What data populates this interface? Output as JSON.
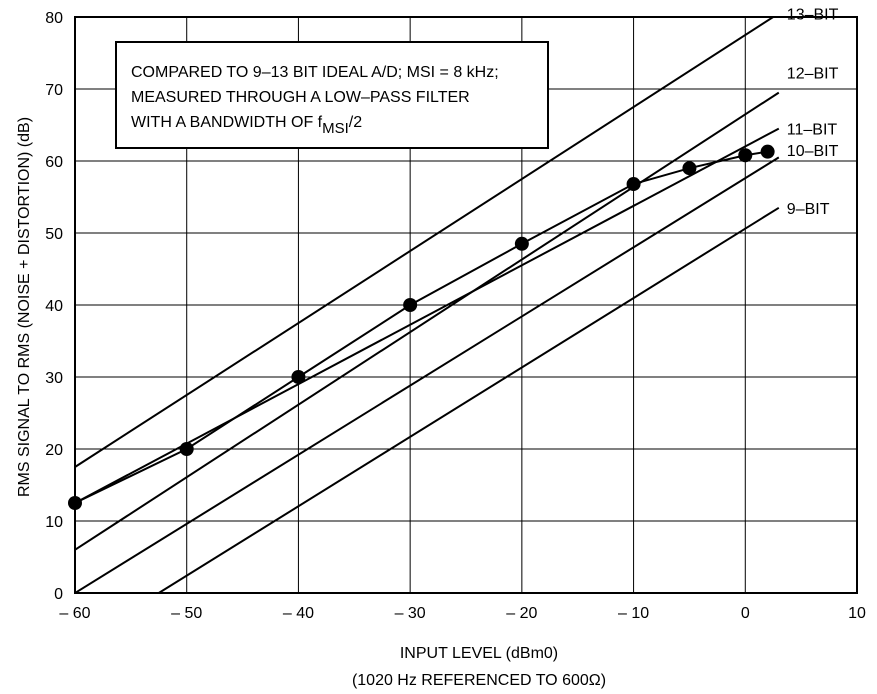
{
  "chart_data": {
    "type": "line",
    "xlabel": "INPUT LEVEL (dBm0)",
    "xlabel_sub": "(1020 Hz REFERENCED TO 600Ω)",
    "ylabel": "RMS SIGNAL TO RMS (NOISE + DISTORTION) (dB)",
    "xlim": [
      -60,
      10
    ],
    "ylim": [
      0,
      80
    ],
    "x_ticks": [
      -60,
      -50,
      -40,
      -30,
      -20,
      -10,
      0,
      10
    ],
    "x_tick_labels": [
      "– 60",
      "– 50",
      "– 40",
      "– 30",
      "– 20",
      "– 10",
      "0",
      "10"
    ],
    "y_ticks": [
      0,
      10,
      20,
      30,
      40,
      50,
      60,
      70,
      80
    ],
    "y_tick_labels": [
      "0",
      "10",
      "20",
      "30",
      "40",
      "50",
      "60",
      "70",
      "80"
    ],
    "grid": true,
    "annotation": {
      "line1": "COMPARED TO 9–13 BIT IDEAL A/D; MSI = 8 kHz;",
      "line2": "MEASURED THROUGH A LOW–PASS FILTER",
      "line3_prefix": "WITH A BANDWIDTH OF f",
      "line3_sub": "MSI",
      "line3_suffix": "/2"
    },
    "reference_lines": [
      {
        "label": "13–BIT",
        "x": [
          -60,
          3
        ],
        "y": [
          17.5,
          80.5
        ]
      },
      {
        "label": "12–BIT",
        "x": [
          -60,
          3
        ],
        "y": [
          6,
          69.5
        ]
      },
      {
        "label": "11–BIT",
        "x": [
          -60,
          3
        ],
        "y": [
          0,
          60.5
        ]
      },
      {
        "label": "10–BIT",
        "x": [
          -52.5,
          3
        ],
        "y": [
          0,
          53.5
        ]
      },
      {
        "label": "9–BIT",
        "x": [
          -60,
          3
        ],
        "y": [
          12.5,
          64.5
        ]
      }
    ],
    "series": [
      {
        "x": [
          -60,
          -50,
          -40,
          -30,
          -20,
          -10,
          -5,
          0,
          2
        ],
        "y": [
          12.5,
          20,
          30,
          40,
          48.5,
          56.8,
          59,
          60.8,
          61.3
        ]
      }
    ]
  }
}
